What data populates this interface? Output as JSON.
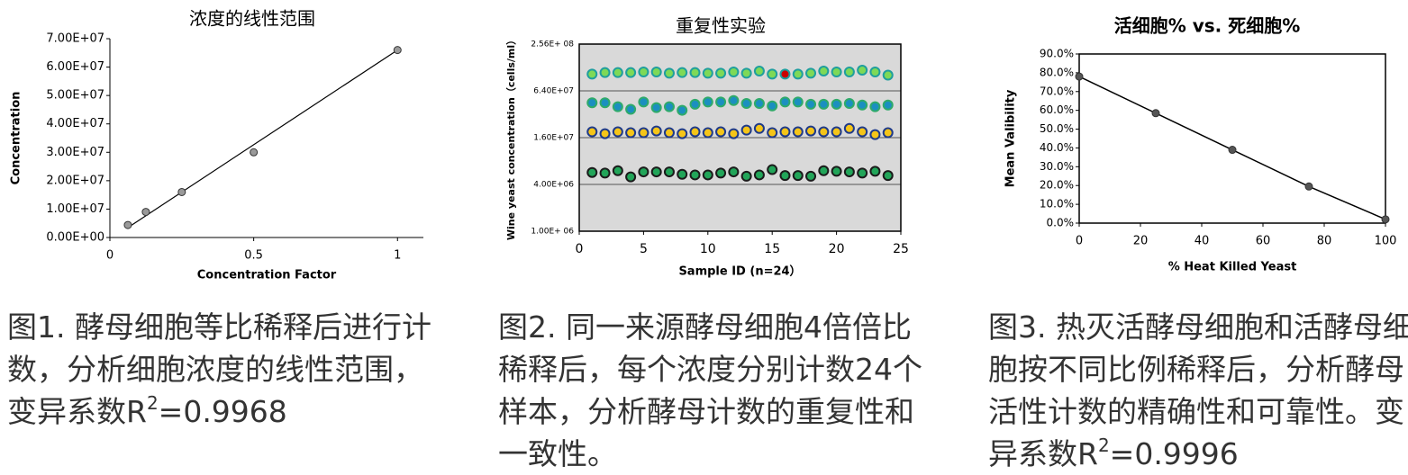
{
  "chart_data": [
    {
      "type": "scatter",
      "title": "浓度的线性范围",
      "x_label": "Concentration Factor",
      "y_label": "Concentration",
      "x": [
        0.0625,
        0.125,
        0.25,
        0.5,
        1
      ],
      "series": [
        {
          "color": "#9a9a9a",
          "values": [
            4400000,
            9000000,
            16000000,
            30000000,
            66000000
          ]
        }
      ],
      "trendline": {
        "color": "#000000",
        "x": [
          0.0625,
          1
        ],
        "values": [
          3500000,
          66000000
        ]
      },
      "xlim": [
        0,
        1.09
      ],
      "xticks": [
        0,
        0.5,
        1
      ],
      "ylim": [
        0,
        70000000
      ],
      "yticks": [
        {
          "value": 0,
          "label": "0.00E+00"
        },
        {
          "value": 10000000,
          "label": "1.00E+07"
        },
        {
          "value": 20000000,
          "label": "2.00E+07"
        },
        {
          "value": 30000000,
          "label": "3.00E+07"
        },
        {
          "value": 40000000,
          "label": "4.00E+07"
        },
        {
          "value": 50000000,
          "label": "5.00E+07"
        },
        {
          "value": 60000000,
          "label": "6.00E+07"
        },
        {
          "value": 70000000,
          "label": "7.00E+07"
        }
      ]
    },
    {
      "type": "scatter",
      "title": "重复性实验",
      "x_label": "Sample ID (n=24）",
      "y_label": "Wine yeast concentration（cells/ml）",
      "log_y": true,
      "grid": true,
      "background": "#d9d9d9",
      "x": [
        1,
        2,
        3,
        4,
        5,
        6,
        7,
        8,
        9,
        10,
        11,
        12,
        13,
        14,
        15,
        16,
        17,
        18,
        19,
        20,
        21,
        22,
        23,
        24
      ],
      "series": [
        {
          "color": "#7ed957",
          "stroke": "#1f9e9e",
          "values": [
            105000000,
            110000000,
            110000000,
            110000000,
            112000000,
            112000000,
            108000000,
            110000000,
            110000000,
            108000000,
            108000000,
            112000000,
            108000000,
            115000000,
            105000000,
            105000000,
            105000000,
            108000000,
            115000000,
            112000000,
            112000000,
            118000000,
            112000000,
            102000000
          ],
          "point_colors": [
            "#7ed957",
            "#7ed957",
            "#7ed957",
            "#7ed957",
            "#7ed957",
            "#7ed957",
            "#7ed957",
            "#7ed957",
            "#7ed957",
            "#7ed957",
            "#7ed957",
            "#7ed957",
            "#7ed957",
            "#7ed957",
            "#7ed957",
            "#cc0000",
            "#7ed957",
            "#7ed957",
            "#7ed957",
            "#7ed957",
            "#7ed957",
            "#7ed957",
            "#7ed957",
            "#7ed957"
          ]
        },
        {
          "color": "#1b8fc0",
          "stroke": "#2faa6a",
          "values": [
            45000000,
            45000000,
            40000000,
            37000000,
            46000000,
            39000000,
            40000000,
            36000000,
            43000000,
            46000000,
            46000000,
            48000000,
            44000000,
            44000000,
            41000000,
            46000000,
            46000000,
            43000000,
            43000000,
            43000000,
            44000000,
            42000000,
            40000000,
            42000000
          ]
        },
        {
          "color": "#f5c518",
          "stroke": "#1e3a8a",
          "values": [
            19000000,
            18000000,
            19000000,
            18500000,
            18500000,
            19500000,
            18500000,
            18000000,
            19000000,
            18500000,
            19000000,
            18000000,
            20000000,
            21000000,
            18500000,
            19000000,
            19000000,
            19500000,
            19000000,
            19000000,
            21000000,
            19000000,
            17500000,
            18500000
          ]
        },
        {
          "color": "#22a559",
          "stroke": "#1b1b1b",
          "values": [
            5700000,
            5600000,
            6000000,
            5000000,
            5800000,
            5800000,
            5800000,
            5400000,
            5300000,
            5300000,
            5600000,
            5800000,
            5100000,
            5300000,
            6200000,
            5200000,
            5200000,
            5100000,
            6000000,
            5900000,
            5800000,
            5600000,
            5900000,
            5200000
          ]
        }
      ],
      "xlim": [
        0,
        25
      ],
      "xticks": [
        0,
        5,
        10,
        15,
        20,
        25
      ],
      "ylim": [
        1000000,
        256000000
      ],
      "yticks": [
        {
          "value": 1000000,
          "label": "1.00E+ 06"
        },
        {
          "value": 4000000,
          "label": "4.00E+06"
        },
        {
          "value": 16000000,
          "label": "1.60E+07"
        },
        {
          "value": 64000000,
          "label": "6.40E+07"
        },
        {
          "value": 256000000,
          "label": "2.56E+ 08"
        }
      ]
    },
    {
      "type": "line",
      "title": "活细胞% vs. 死细胞%",
      "x_label": "% Heat Killed Yeast",
      "y_label": "Mean Valibility",
      "x": [
        0,
        25,
        50,
        75,
        100
      ],
      "series": [
        {
          "color": "#000000",
          "values": [
            78,
            58.5,
            39,
            19.5,
            2
          ]
        }
      ],
      "xlim": [
        0,
        100
      ],
      "xticks": [
        0,
        20,
        40,
        60,
        80,
        100
      ],
      "ylim": [
        0,
        90
      ],
      "yticks": [
        {
          "value": 0,
          "label": "0.0%"
        },
        {
          "value": 10,
          "label": "10.0%"
        },
        {
          "value": 20,
          "label": "20.0%"
        },
        {
          "value": 30,
          "label": "30.0%"
        },
        {
          "value": 40,
          "label": "40.0%"
        },
        {
          "value": 50,
          "label": "50.0%"
        },
        {
          "value": 60,
          "label": "60.0%"
        },
        {
          "value": 70,
          "label": "70.0%"
        },
        {
          "value": 80,
          "label": "80.0%"
        },
        {
          "value": 90,
          "label": "90.0%"
        }
      ]
    }
  ],
  "captions": [
    {
      "text": "图1. 酵母细胞等比稀释后进行计数，分析细胞浓度的线性范围，变异系数R",
      "sup": "2",
      "after": "=0.9968"
    },
    {
      "text": "图2. 同一来源酵母细胞4倍倍比稀释后，每个浓度分别计数24个样本，分析酵母计数的重复性和一致性。"
    },
    {
      "text": "图3. 热灭活酵母细胞和活酵母细胞按不同比例稀释后，分析酵母活性计数的精确性和可靠性。变异系数R",
      "sup": "2",
      "after": "=0.9996"
    }
  ]
}
